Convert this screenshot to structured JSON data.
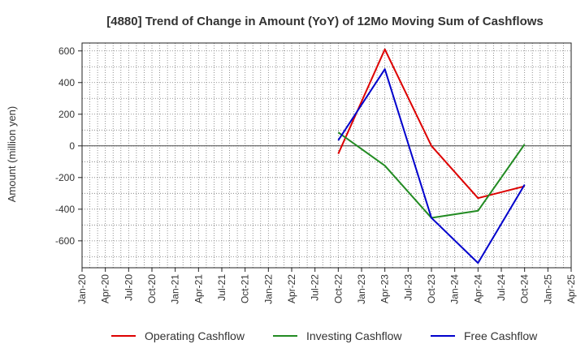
{
  "chart_data": {
    "type": "line",
    "title": "[4880]  Trend of Change in Amount (YoY) of 12Mo Moving Sum of Cashflows",
    "xlabel": "",
    "ylabel": "Amount (million yen)",
    "categories": [
      "Jan-20",
      "Apr-20",
      "Jul-20",
      "Oct-20",
      "Jan-21",
      "Apr-21",
      "Jul-21",
      "Oct-21",
      "Jan-22",
      "Apr-22",
      "Jul-22",
      "Oct-22",
      "Jan-23",
      "Apr-23",
      "Jul-23",
      "Oct-23",
      "Jan-24",
      "Apr-24",
      "Jul-24",
      "Oct-24",
      "Jan-25",
      "Apr-25"
    ],
    "yticks": [
      600,
      400,
      200,
      0,
      -200,
      -400,
      -600
    ],
    "ylim": [
      -770,
      650
    ],
    "grid": true,
    "legend_position": "bottom",
    "series": [
      {
        "name": "Operating Cashflow",
        "color": "#dd0000",
        "x": [
          "Oct-22",
          "Apr-23",
          "Oct-23",
          "Apr-24",
          "Oct-24"
        ],
        "values": [
          -50,
          610,
          0,
          -330,
          -255
        ]
      },
      {
        "name": "Investing Cashflow",
        "color": "#228b22",
        "x": [
          "Oct-22",
          "Apr-23",
          "Oct-23",
          "Apr-24",
          "Oct-24"
        ],
        "values": [
          85,
          -125,
          -455,
          -410,
          10
        ]
      },
      {
        "name": "Free Cashflow",
        "color": "#0000cc",
        "x": [
          "Oct-22",
          "Apr-23",
          "Oct-23",
          "Apr-24",
          "Oct-24"
        ],
        "values": [
          35,
          485,
          -455,
          -740,
          -245
        ]
      }
    ]
  }
}
